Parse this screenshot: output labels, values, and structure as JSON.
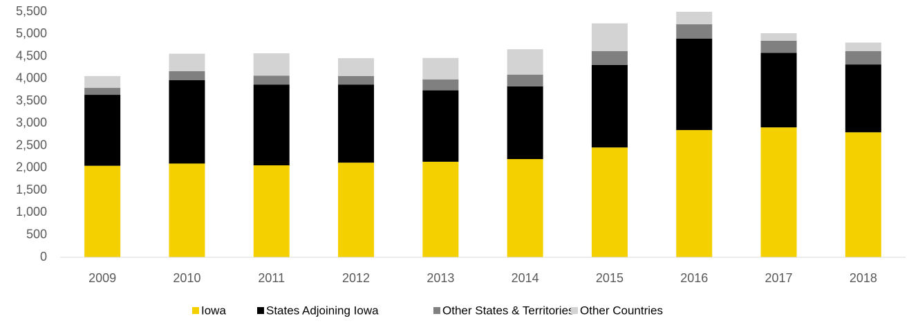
{
  "chart_data": {
    "type": "stacked_bar",
    "categories": [
      "2009",
      "2010",
      "2011",
      "2012",
      "2013",
      "2014",
      "2015",
      "2016",
      "2017",
      "2018"
    ],
    "series": [
      {
        "name": "Iowa",
        "color": "#f5d000",
        "values": [
          2050,
          2100,
          2060,
          2120,
          2140,
          2200,
          2460,
          2850,
          2910,
          2800
        ]
      },
      {
        "name": "States Adjoining Iowa",
        "color": "#000000",
        "values": [
          1590,
          1870,
          1810,
          1750,
          1600,
          1630,
          1850,
          2050,
          1670,
          1520
        ]
      },
      {
        "name": "Other States & Territories",
        "color": "#808080",
        "values": [
          155,
          200,
          200,
          190,
          245,
          260,
          310,
          320,
          270,
          300
        ]
      },
      {
        "name": "Other Countries",
        "color": "#d3d3d3",
        "values": [
          265,
          390,
          500,
          400,
          480,
          570,
          620,
          280,
          170,
          190
        ]
      }
    ],
    "ylim": [
      0,
      5500
    ],
    "yticks": [
      0,
      500,
      {
        "value": 1000,
        "label": "1,000"
      },
      {
        "value": 1500,
        "label": "1,500"
      },
      {
        "value": 2000,
        "label": "2,000"
      },
      {
        "value": 2500,
        "label": "2,500"
      },
      {
        "value": 3000,
        "label": "3,000"
      },
      {
        "value": 3500,
        "label": "3,500"
      },
      {
        "value": 4000,
        "label": "4,000"
      },
      {
        "value": 4500,
        "label": "4,500"
      },
      {
        "value": 5000,
        "label": "5,000"
      },
      {
        "value": 5500,
        "label": "5,500"
      }
    ],
    "grid": false,
    "legend": "bottom"
  }
}
